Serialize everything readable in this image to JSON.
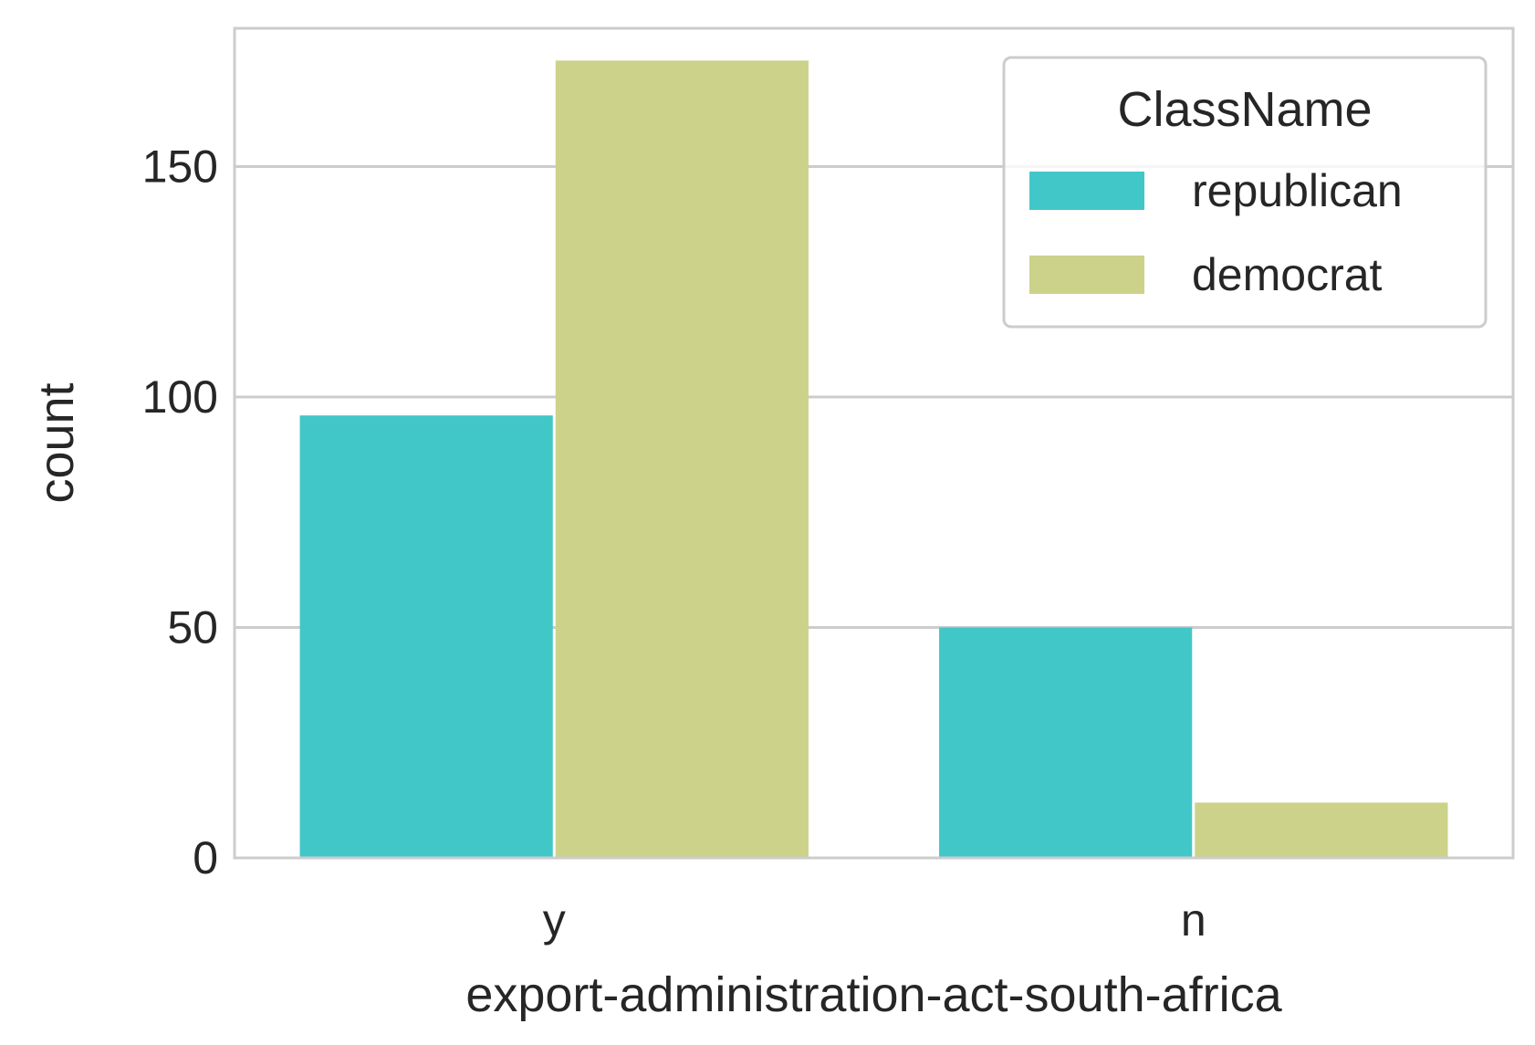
{
  "chart_data": {
    "type": "bar",
    "categories": [
      "y",
      "n"
    ],
    "series": [
      {
        "name": "republican",
        "values": [
          96,
          50
        ],
        "color": "#42c7c9"
      },
      {
        "name": "democrat",
        "values": [
          173,
          12
        ],
        "color": "#ccd28a"
      }
    ],
    "xlabel": "export-administration-act-south-africa",
    "ylabel": "count",
    "ylim": [
      0,
      180
    ],
    "yticks": [
      0,
      50,
      100,
      150
    ],
    "grid": true,
    "legend": {
      "title": "ClassName",
      "position": "top-right"
    }
  }
}
